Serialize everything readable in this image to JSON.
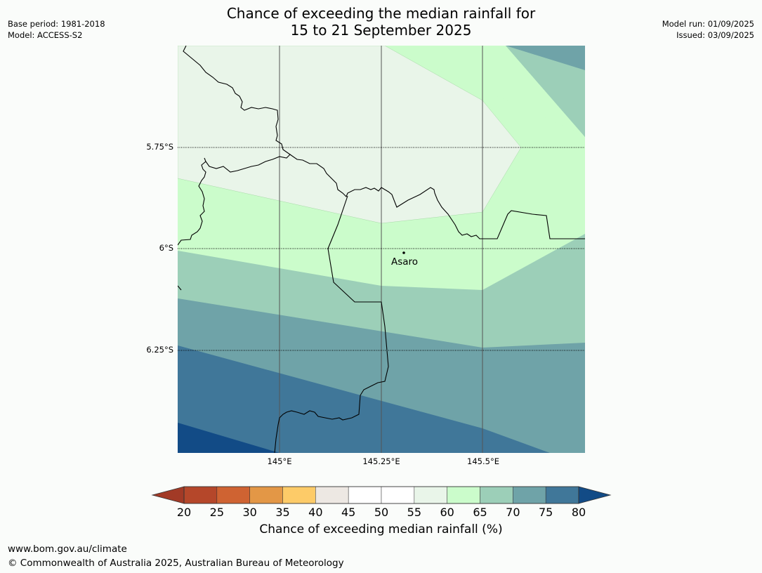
{
  "header": {
    "title_line1": "Chance of exceeding the median rainfall for",
    "title_line2": "15 to 21 September 2025",
    "base_period": "Base period: 1981-2018",
    "model": "Model: ACCESS-S2",
    "model_run": "Model run: 01/09/2025",
    "issued": "Issued: 03/09/2025"
  },
  "map": {
    "latitude_labels": [
      "5.75°S",
      "6°S",
      "6.25°S"
    ],
    "longitude_labels": [
      "145°E",
      "145.25°E",
      "145.5°E"
    ],
    "town_name": "Asaro"
  },
  "colorbar": {
    "ticks": [
      "20",
      "25",
      "30",
      "35",
      "40",
      "45",
      "50",
      "55",
      "60",
      "65",
      "70",
      "75",
      "80"
    ],
    "colors": [
      "#b5472a",
      "#cf6332",
      "#e39746",
      "#fdcb68",
      "#ede8e3",
      "#ffffff",
      "#ffffff",
      "#e9f5e9",
      "#cbfccb",
      "#9ccfb8",
      "#6fa3a8",
      "#407799"
    ],
    "below_color": "#a23a26",
    "above_color": "#124b86",
    "label": "Chance of exceeding median rainfall (%)"
  },
  "footer": {
    "website": "www.bom.gov.au/climate",
    "copyright": "© Commonwealth of Australia 2025, Australian Bureau of Meteorology"
  }
}
